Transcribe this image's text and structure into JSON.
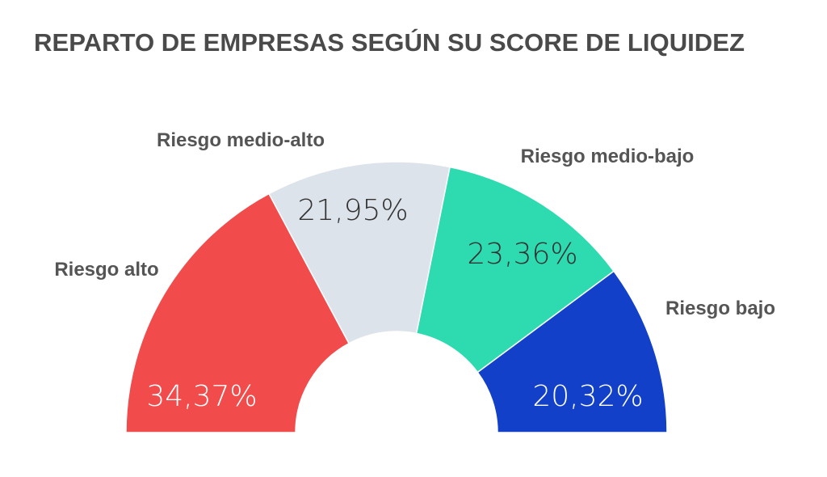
{
  "chart_data": {
    "type": "pie",
    "variant": "semi-donut",
    "title": "REPARTO DE EMPRESAS SEGÚN SU SCORE DE LIQUIDEZ",
    "categories": [
      "Riesgo alto",
      "Riesgo medio-alto",
      "Riesgo medio-bajo",
      "Riesgo bajo"
    ],
    "values": [
      34.37,
      21.95,
      23.36,
      20.32
    ],
    "value_labels": [
      "34,37%",
      "21,95%",
      "23,36%",
      "20,32%"
    ],
    "colors": [
      "#F24B4B",
      "#DDE3EA",
      "#2EDBB0",
      "#1240C8"
    ],
    "label_colors": [
      "#ffffff",
      "#333333",
      "#333333",
      "#ffffff"
    ]
  }
}
